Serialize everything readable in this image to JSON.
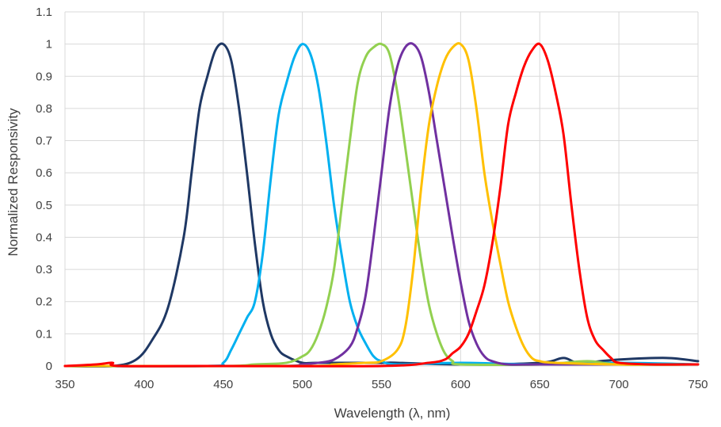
{
  "chart_data": {
    "type": "line",
    "title": "",
    "xlabel": "Wavelength (λ, nm)",
    "ylabel": "Normalized Responsivity",
    "xlim": [
      350,
      750
    ],
    "ylim": [
      0,
      1.1
    ],
    "x_ticks": [
      "350",
      "400",
      "450",
      "500",
      "550",
      "600",
      "650",
      "700",
      "750"
    ],
    "y_ticks": [
      "0",
      "0.1",
      "0.2",
      "0.3",
      "0.4",
      "0.5",
      "0.6",
      "0.7",
      "0.8",
      "0.9",
      "1",
      "1.1"
    ],
    "grid": true,
    "legend": "none",
    "series": [
      {
        "color": "#1f3864",
        "points": [
          [
            350,
            0.0
          ],
          [
            380,
            0.0
          ],
          [
            395,
            0.02
          ],
          [
            405,
            0.08
          ],
          [
            415,
            0.18
          ],
          [
            425,
            0.4
          ],
          [
            430,
            0.6
          ],
          [
            435,
            0.8
          ],
          [
            440,
            0.9
          ],
          [
            445,
            0.98
          ],
          [
            450,
            1.0
          ],
          [
            455,
            0.95
          ],
          [
            460,
            0.8
          ],
          [
            465,
            0.6
          ],
          [
            470,
            0.38
          ],
          [
            475,
            0.2
          ],
          [
            480,
            0.1
          ],
          [
            485,
            0.05
          ],
          [
            490,
            0.03
          ],
          [
            500,
            0.01
          ],
          [
            510,
            0.01
          ],
          [
            550,
            0.01
          ],
          [
            560,
            0.01
          ],
          [
            600,
            0.005
          ],
          [
            650,
            0.01
          ],
          [
            665,
            0.025
          ],
          [
            675,
            0.01
          ],
          [
            700,
            0.02
          ],
          [
            730,
            0.025
          ],
          [
            750,
            0.015
          ]
        ]
      },
      {
        "color": "#00b0f0",
        "points": [
          [
            350,
            0.0
          ],
          [
            440,
            0.0
          ],
          [
            450,
            0.01
          ],
          [
            455,
            0.05
          ],
          [
            460,
            0.1
          ],
          [
            465,
            0.15
          ],
          [
            470,
            0.2
          ],
          [
            475,
            0.35
          ],
          [
            480,
            0.58
          ],
          [
            485,
            0.78
          ],
          [
            490,
            0.88
          ],
          [
            495,
            0.96
          ],
          [
            500,
            1.0
          ],
          [
            505,
            0.97
          ],
          [
            510,
            0.87
          ],
          [
            515,
            0.7
          ],
          [
            520,
            0.5
          ],
          [
            525,
            0.34
          ],
          [
            530,
            0.2
          ],
          [
            535,
            0.12
          ],
          [
            540,
            0.07
          ],
          [
            545,
            0.03
          ],
          [
            550,
            0.015
          ],
          [
            560,
            0.005
          ],
          [
            600,
            0.01
          ],
          [
            650,
            0.005
          ],
          [
            700,
            0.01
          ],
          [
            750,
            0.005
          ]
        ]
      },
      {
        "color": "#92d050",
        "points": [
          [
            350,
            0.0
          ],
          [
            450,
            0.0
          ],
          [
            470,
            0.005
          ],
          [
            490,
            0.01
          ],
          [
            500,
            0.03
          ],
          [
            505,
            0.05
          ],
          [
            510,
            0.1
          ],
          [
            515,
            0.18
          ],
          [
            520,
            0.3
          ],
          [
            525,
            0.5
          ],
          [
            530,
            0.7
          ],
          [
            535,
            0.88
          ],
          [
            540,
            0.96
          ],
          [
            545,
            0.99
          ],
          [
            550,
            1.0
          ],
          [
            555,
            0.97
          ],
          [
            560,
            0.85
          ],
          [
            565,
            0.68
          ],
          [
            570,
            0.5
          ],
          [
            575,
            0.33
          ],
          [
            580,
            0.19
          ],
          [
            585,
            0.1
          ],
          [
            590,
            0.04
          ],
          [
            595,
            0.015
          ],
          [
            600,
            0.005
          ],
          [
            650,
            0.005
          ],
          [
            680,
            0.015
          ],
          [
            700,
            0.005
          ],
          [
            750,
            0.005
          ]
        ]
      },
      {
        "color": "#7030a0",
        "points": [
          [
            350,
            0.0
          ],
          [
            480,
            0.0
          ],
          [
            500,
            0.005
          ],
          [
            510,
            0.01
          ],
          [
            520,
            0.02
          ],
          [
            530,
            0.06
          ],
          [
            535,
            0.12
          ],
          [
            540,
            0.22
          ],
          [
            545,
            0.4
          ],
          [
            550,
            0.6
          ],
          [
            555,
            0.8
          ],
          [
            560,
            0.93
          ],
          [
            565,
            0.99
          ],
          [
            570,
            1.0
          ],
          [
            575,
            0.96
          ],
          [
            580,
            0.85
          ],
          [
            585,
            0.7
          ],
          [
            590,
            0.55
          ],
          [
            595,
            0.4
          ],
          [
            600,
            0.26
          ],
          [
            605,
            0.14
          ],
          [
            610,
            0.07
          ],
          [
            615,
            0.03
          ],
          [
            620,
            0.015
          ],
          [
            630,
            0.005
          ],
          [
            650,
            0.005
          ],
          [
            700,
            0.005
          ],
          [
            750,
            0.005
          ]
        ]
      },
      {
        "color": "#ffc000",
        "points": [
          [
            350,
            0.0
          ],
          [
            500,
            0.0
          ],
          [
            520,
            0.005
          ],
          [
            540,
            0.01
          ],
          [
            550,
            0.015
          ],
          [
            560,
            0.05
          ],
          [
            565,
            0.12
          ],
          [
            570,
            0.3
          ],
          [
            575,
            0.55
          ],
          [
            580,
            0.75
          ],
          [
            585,
            0.87
          ],
          [
            590,
            0.95
          ],
          [
            595,
            0.99
          ],
          [
            600,
            1.0
          ],
          [
            605,
            0.95
          ],
          [
            610,
            0.8
          ],
          [
            615,
            0.6
          ],
          [
            620,
            0.45
          ],
          [
            625,
            0.32
          ],
          [
            630,
            0.2
          ],
          [
            635,
            0.12
          ],
          [
            640,
            0.06
          ],
          [
            645,
            0.025
          ],
          [
            650,
            0.015
          ],
          [
            660,
            0.01
          ],
          [
            700,
            0.005
          ],
          [
            750,
            0.005
          ]
        ]
      },
      {
        "color": "#ff0000",
        "points": [
          [
            350,
            0.0
          ],
          [
            370,
            0.005
          ],
          [
            380,
            0.01
          ],
          [
            385,
            0.0
          ],
          [
            450,
            0.0
          ],
          [
            550,
            0.0
          ],
          [
            580,
            0.01
          ],
          [
            590,
            0.02
          ],
          [
            595,
            0.04
          ],
          [
            600,
            0.06
          ],
          [
            605,
            0.1
          ],
          [
            610,
            0.17
          ],
          [
            615,
            0.25
          ],
          [
            620,
            0.38
          ],
          [
            625,
            0.55
          ],
          [
            630,
            0.75
          ],
          [
            635,
            0.85
          ],
          [
            640,
            0.93
          ],
          [
            645,
            0.98
          ],
          [
            650,
            1.0
          ],
          [
            655,
            0.95
          ],
          [
            660,
            0.85
          ],
          [
            665,
            0.72
          ],
          [
            670,
            0.5
          ],
          [
            675,
            0.3
          ],
          [
            680,
            0.15
          ],
          [
            685,
            0.08
          ],
          [
            690,
            0.05
          ],
          [
            695,
            0.025
          ],
          [
            700,
            0.01
          ],
          [
            720,
            0.005
          ],
          [
            750,
            0.005
          ]
        ]
      }
    ]
  }
}
